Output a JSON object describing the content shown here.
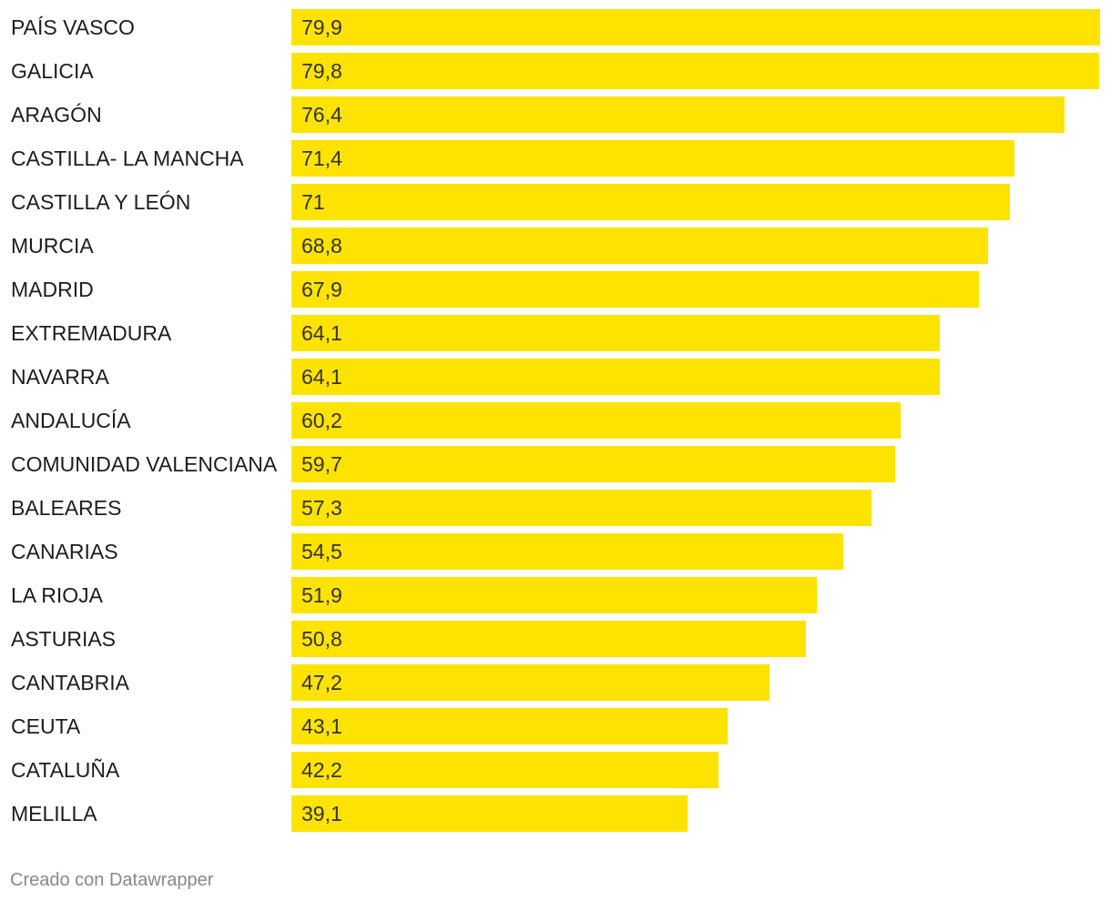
{
  "chart_data": {
    "type": "bar",
    "orientation": "horizontal",
    "categories": [
      "PAÍS VASCO",
      "GALICIA",
      "ARAGÓN",
      "CASTILLA- LA MANCHA",
      "CASTILLA Y LEÓN",
      "MURCIA",
      "MADRID",
      "EXTREMADURA",
      "NAVARRA",
      "ANDALUCÍA",
      "COMUNIDAD VALENCIANA",
      "BALEARES",
      "CANARIAS",
      "LA RIOJA",
      "ASTURIAS",
      "CANTABRIA",
      "CEUTA",
      "CATALUÑA",
      "MELILLA"
    ],
    "values": [
      79.9,
      79.8,
      76.4,
      71.4,
      71,
      68.8,
      67.9,
      64.1,
      64.1,
      60.2,
      59.7,
      57.3,
      54.5,
      51.9,
      50.8,
      47.2,
      43.1,
      42.2,
      39.1
    ],
    "value_labels": [
      "79,9",
      "79,8",
      "76,4",
      "71,4",
      "71",
      "68,8",
      "67,9",
      "64,1",
      "64,1",
      "60,2",
      "59,7",
      "57,3",
      "54,5",
      "51,9",
      "50,8",
      "47,2",
      "43,1",
      "42,2",
      "39,1"
    ],
    "xlim": [
      0,
      79.9
    ],
    "bar_color": "#fee300",
    "grid": false,
    "legend": "none"
  },
  "footer": {
    "credit": "Creado con Datawrapper"
  }
}
